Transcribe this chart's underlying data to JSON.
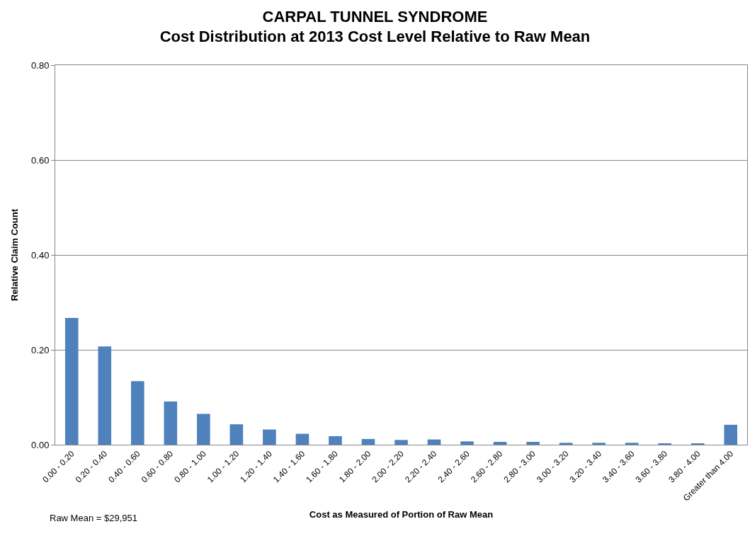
{
  "chart_data": {
    "type": "bar",
    "title": "CARPAL TUNNEL SYNDROME\nCost Distribution at 2013 Cost Level Relative to Raw Mean",
    "xlabel": "Cost as Measured of Portion of Raw Mean",
    "ylabel": "Relative Claim Count",
    "categories": [
      "0.00 - 0.20",
      "0.20 - 0.40",
      "0.40 - 0.60",
      "0.60 - 0.80",
      "0.80 - 1.00",
      "1.00 - 1.20",
      "1.20 - 1.40",
      "1.40 - 1.60",
      "1.60 - 1.80",
      "1.80 - 2.00",
      "2.00 - 2.20",
      "2.20 - 2.40",
      "2.40 - 2.60",
      "2.60 - 2.80",
      "2.80 - 3.00",
      "3.00 - 3.20",
      "3.20 - 3.40",
      "3.40 - 3.60",
      "3.60 - 3.80",
      "3.80 - 4.00",
      "Greater than 4.00"
    ],
    "values": [
      0.267,
      0.207,
      0.134,
      0.091,
      0.065,
      0.043,
      0.032,
      0.023,
      0.018,
      0.012,
      0.01,
      0.011,
      0.007,
      0.006,
      0.006,
      0.004,
      0.004,
      0.004,
      0.002,
      0.002,
      0.042
    ],
    "color": "#4f81bd",
    "ylim": [
      0,
      0.8
    ],
    "yticks": [
      {
        "value": 0,
        "label": "0.00"
      },
      {
        "value": 0.2,
        "label": "0.20"
      },
      {
        "value": 0.4,
        "label": "0.40"
      },
      {
        "value": 0.6,
        "label": "0.60"
      },
      {
        "value": 0.8,
        "label": "0.80"
      }
    ],
    "grid": "y",
    "legend": false,
    "annotations": [
      "Raw Mean = $29,951"
    ]
  }
}
